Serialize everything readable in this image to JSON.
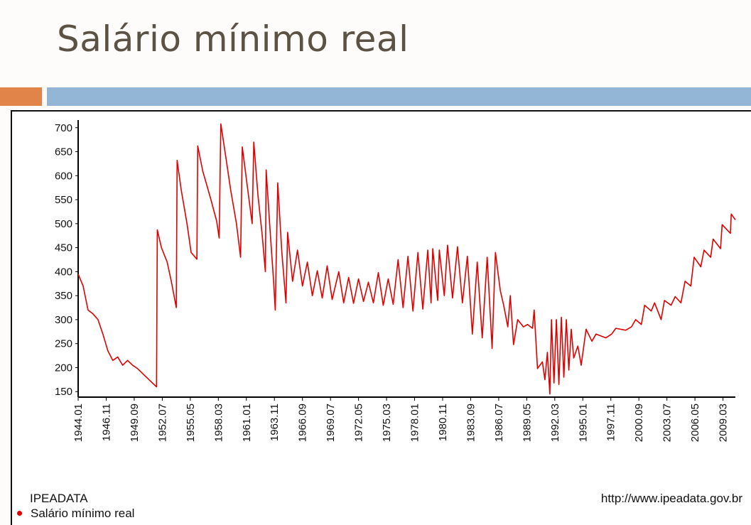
{
  "slide": {
    "title": "Salário mínimo real",
    "accent_orange": "#e0844a",
    "accent_blue": "#93b6d6"
  },
  "footer": {
    "source": "IPEADATA",
    "url": "http://www.ipeadata.gov.br"
  },
  "chart_data": {
    "type": "line",
    "title": "",
    "xlabel": "",
    "ylabel": "",
    "ylim": [
      140,
      710
    ],
    "y_ticks": [
      150,
      200,
      250,
      300,
      350,
      400,
      450,
      500,
      550,
      600,
      650,
      700
    ],
    "x_tick_labels": [
      "1944.01",
      "1946.11",
      "1949.09",
      "1952.07",
      "1955.05",
      "1958.03",
      "1961.01",
      "1963.11",
      "1966.09",
      "1969.07",
      "1972.05",
      "1975.03",
      "1978.01",
      "1980.11",
      "1983.09",
      "1986.07",
      "1989.05",
      "1992.03",
      "1995.01",
      "1997.11",
      "2000.09",
      "2003.07",
      "2006.05",
      "2009.03"
    ],
    "x_range": [
      "1944.01",
      "2010.06"
    ],
    "legend_position": "bottom-left",
    "grid": false,
    "series": [
      {
        "name": "Salário mínimo real",
        "color": "#e00000",
        "points": [
          [
            "1944.01",
            395
          ],
          [
            "1944.07",
            370
          ],
          [
            "1945.01",
            320
          ],
          [
            "1945.07",
            312
          ],
          [
            "1946.01",
            300
          ],
          [
            "1946.07",
            270
          ],
          [
            "1947.01",
            235
          ],
          [
            "1947.07",
            215
          ],
          [
            "1948.01",
            222
          ],
          [
            "1948.07",
            205
          ],
          [
            "1949.01",
            215
          ],
          [
            "1949.07",
            205
          ],
          [
            "1950.01",
            198
          ],
          [
            "1950.07",
            188
          ],
          [
            "1951.01",
            178
          ],
          [
            "1951.07",
            168
          ],
          [
            "1951.12",
            160
          ],
          [
            "1952.01",
            487
          ],
          [
            "1952.06",
            450
          ],
          [
            "1953.01",
            420
          ],
          [
            "1953.06",
            380
          ],
          [
            "1953.12",
            325
          ],
          [
            "1954.01",
            632
          ],
          [
            "1954.06",
            570
          ],
          [
            "1955.01",
            500
          ],
          [
            "1955.06",
            440
          ],
          [
            "1956.01",
            426
          ],
          [
            "1956.02",
            662
          ],
          [
            "1956.08",
            610
          ],
          [
            "1957.06",
            550
          ],
          [
            "1958.01",
            505
          ],
          [
            "1958.04",
            470
          ],
          [
            "1958.06",
            708
          ],
          [
            "1958.12",
            640
          ],
          [
            "1959.06",
            570
          ],
          [
            "1960.01",
            500
          ],
          [
            "1960.06",
            430
          ],
          [
            "1960.08",
            660
          ],
          [
            "1961.02",
            580
          ],
          [
            "1961.08",
            500
          ],
          [
            "1961.10",
            670
          ],
          [
            "1962.03",
            560
          ],
          [
            "1962.08",
            480
          ],
          [
            "1962.12",
            400
          ],
          [
            "1963.01",
            612
          ],
          [
            "1963.06",
            480
          ],
          [
            "1963.10",
            380
          ],
          [
            "1963.12",
            320
          ],
          [
            "1964.03",
            585
          ],
          [
            "1964.08",
            440
          ],
          [
            "1965.01",
            335
          ],
          [
            "1965.03",
            482
          ],
          [
            "1965.09",
            380
          ],
          [
            "1966.03",
            445
          ],
          [
            "1966.09",
            370
          ],
          [
            "1967.03",
            420
          ],
          [
            "1967.09",
            350
          ],
          [
            "1968.03",
            402
          ],
          [
            "1968.09",
            345
          ],
          [
            "1969.03",
            412
          ],
          [
            "1969.09",
            342
          ],
          [
            "1970.05",
            400
          ],
          [
            "1970.11",
            335
          ],
          [
            "1971.05",
            388
          ],
          [
            "1971.11",
            334
          ],
          [
            "1972.05",
            385
          ],
          [
            "1972.11",
            338
          ],
          [
            "1973.05",
            378
          ],
          [
            "1973.11",
            335
          ],
          [
            "1974.05",
            398
          ],
          [
            "1974.11",
            330
          ],
          [
            "1975.05",
            385
          ],
          [
            "1975.11",
            332
          ],
          [
            "1976.05",
            425
          ],
          [
            "1976.11",
            325
          ],
          [
            "1977.05",
            432
          ],
          [
            "1977.11",
            318
          ],
          [
            "1978.05",
            440
          ],
          [
            "1978.11",
            322
          ],
          [
            "1979.05",
            445
          ],
          [
            "1979.09",
            335
          ],
          [
            "1979.11",
            448
          ],
          [
            "1980.05",
            340
          ],
          [
            "1980.07",
            445
          ],
          [
            "1981.01",
            350
          ],
          [
            "1981.05",
            455
          ],
          [
            "1981.11",
            345
          ],
          [
            "1982.05",
            452
          ],
          [
            "1982.11",
            335
          ],
          [
            "1983.05",
            432
          ],
          [
            "1983.11",
            270
          ],
          [
            "1984.05",
            420
          ],
          [
            "1984.11",
            262
          ],
          [
            "1985.05",
            430
          ],
          [
            "1985.11",
            240
          ],
          [
            "1986.03",
            440
          ],
          [
            "1986.09",
            360
          ],
          [
            "1987.01",
            330
          ],
          [
            "1987.06",
            285
          ],
          [
            "1987.09",
            350
          ],
          [
            "1988.01",
            248
          ],
          [
            "1988.06",
            300
          ],
          [
            "1989.01",
            285
          ],
          [
            "1989.06",
            290
          ],
          [
            "1989.12",
            282
          ],
          [
            "1990.02",
            320
          ],
          [
            "1990.06",
            198
          ],
          [
            "1990.12",
            212
          ],
          [
            "1991.03",
            175
          ],
          [
            "1991.06",
            232
          ],
          [
            "1991.09",
            145
          ],
          [
            "1991.11",
            300
          ],
          [
            "1992.02",
            168
          ],
          [
            "1992.05",
            300
          ],
          [
            "1992.08",
            165
          ],
          [
            "1992.11",
            305
          ],
          [
            "1993.02",
            180
          ],
          [
            "1993.05",
            300
          ],
          [
            "1993.08",
            195
          ],
          [
            "1993.11",
            280
          ],
          [
            "1994.02",
            220
          ],
          [
            "1994.07",
            245
          ],
          [
            "1994.11",
            205
          ],
          [
            "1995.05",
            280
          ],
          [
            "1995.12",
            255
          ],
          [
            "1996.05",
            270
          ],
          [
            "1997.05",
            262
          ],
          [
            "1997.12",
            270
          ],
          [
            "1998.05",
            282
          ],
          [
            "1999.05",
            278
          ],
          [
            "1999.12",
            285
          ],
          [
            "2000.05",
            300
          ],
          [
            "2000.12",
            290
          ],
          [
            "2001.04",
            330
          ],
          [
            "2001.12",
            318
          ],
          [
            "2002.04",
            335
          ],
          [
            "2002.12",
            300
          ],
          [
            "2003.04",
            340
          ],
          [
            "2003.12",
            330
          ],
          [
            "2004.05",
            348
          ],
          [
            "2004.12",
            335
          ],
          [
            "2005.05",
            380
          ],
          [
            "2005.12",
            370
          ],
          [
            "2006.04",
            430
          ],
          [
            "2006.12",
            410
          ],
          [
            "2007.04",
            445
          ],
          [
            "2007.12",
            430
          ],
          [
            "2008.03",
            468
          ],
          [
            "2008.12",
            448
          ],
          [
            "2009.02",
            498
          ],
          [
            "2009.12",
            480
          ],
          [
            "2010.01",
            520
          ],
          [
            "2010.06",
            508
          ]
        ]
      }
    ]
  }
}
